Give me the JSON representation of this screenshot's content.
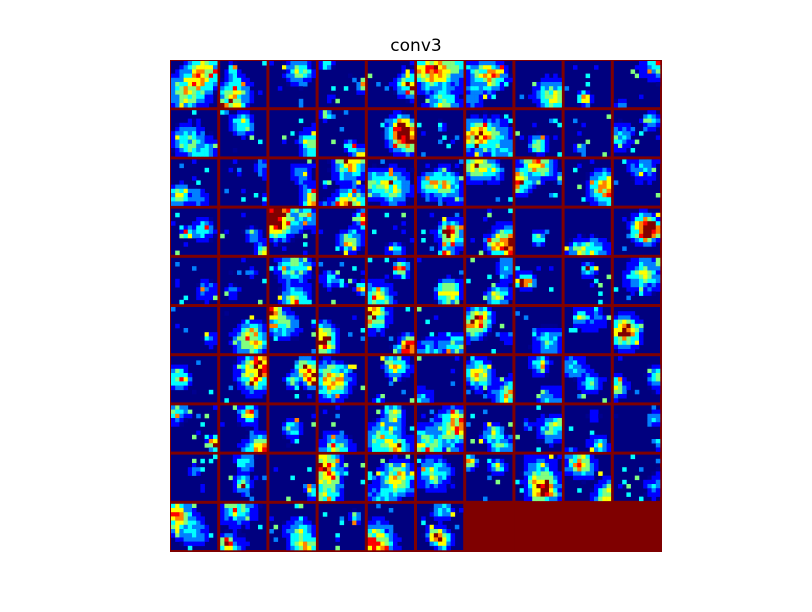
{
  "figure": {
    "title": "conv3",
    "grid_rows": 10,
    "grid_cols": 10,
    "tile_count": 96,
    "colormap": [
      "#00008f",
      "#0000ff",
      "#0080ff",
      "#00ffff",
      "#80ff80",
      "#ffff00",
      "#ff8000",
      "#ff0000",
      "#800000"
    ],
    "separator_color": "#7f0000",
    "background_color": "#00007f",
    "empty_cell_color": "#7f0000"
  }
}
